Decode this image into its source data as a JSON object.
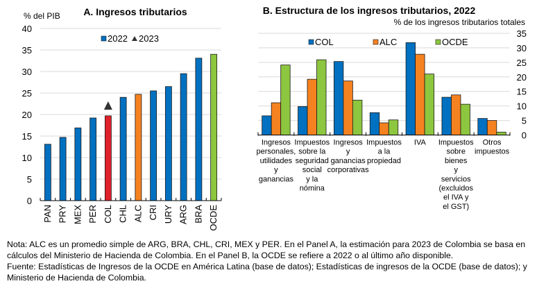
{
  "chart_data": [
    {
      "type": "bar",
      "title": "A. Ingresos tributarios",
      "ylabel": "% del PIB",
      "xlabel": "",
      "ylim": [
        0,
        40
      ],
      "yticks": [
        0,
        5,
        10,
        15,
        20,
        25,
        30,
        35,
        40
      ],
      "grid": true,
      "legend_position": "top-center",
      "categories": [
        "PAN",
        "PRY",
        "MEX",
        "PER",
        "COL",
        "CHL",
        "ALC",
        "CRI",
        "URY",
        "ARG",
        "BRA",
        "OCDE"
      ],
      "series": [
        {
          "name": "2022",
          "marker": "bar",
          "values": [
            13.1,
            14.7,
            16.9,
            19.2,
            19.7,
            24.0,
            24.7,
            25.5,
            26.5,
            29.5,
            33.1,
            34.0
          ]
        },
        {
          "name": "2023",
          "marker": "triangle",
          "values": [
            null,
            null,
            null,
            null,
            22.1,
            null,
            null,
            null,
            null,
            null,
            null,
            null
          ]
        }
      ],
      "bar_colors": [
        "#0070C0",
        "#0070C0",
        "#0070C0",
        "#0070C0",
        "#E0202A",
        "#0070C0",
        "#F58220",
        "#0070C0",
        "#0070C0",
        "#0070C0",
        "#0070C0",
        "#8DC63F"
      ],
      "legend": [
        {
          "label": "2022",
          "color": "#0070C0",
          "shape": "square"
        },
        {
          "label": "2023",
          "color": "#333333",
          "shape": "triangle"
        }
      ]
    },
    {
      "type": "bar",
      "title": "B. Estructura de los ingresos tributarios, 2022",
      "ylabel": "% de los ingresos tributarios totales",
      "xlabel": "",
      "ylim": [
        0,
        35
      ],
      "yticks": [
        0,
        5,
        10,
        15,
        20,
        25,
        30,
        35
      ],
      "y_axis_side": "right",
      "grid": true,
      "legend_position": "top",
      "categories": [
        [
          "Ingresos",
          "personales,",
          "utilidades",
          "y",
          "ganancias"
        ],
        [
          "Impuestos",
          "sobre la",
          "seguridad",
          "social",
          "y la",
          "nómina"
        ],
        [
          "Ingresos",
          "y",
          "ganancias",
          "corporativas"
        ],
        [
          "Impuestos",
          "a la",
          "propiedad"
        ],
        [
          "IVA"
        ],
        [
          "Impuestos",
          "sobre",
          "bienes",
          "y",
          "servicios",
          "(excluidos",
          "el IVA y",
          "el GST)"
        ],
        [
          "Otros",
          "impuestos"
        ]
      ],
      "series": [
        {
          "name": "COL",
          "color": "#0070C0",
          "values": [
            6.6,
            9.8,
            25.3,
            7.7,
            31.8,
            13.0,
            5.7
          ]
        },
        {
          "name": "ALC",
          "color": "#F58220",
          "values": [
            11.1,
            19.2,
            18.6,
            4.2,
            27.8,
            13.8,
            5.0
          ]
        },
        {
          "name": "OCDE",
          "color": "#8DC63F",
          "values": [
            24.1,
            25.9,
            12.0,
            5.2,
            21.0,
            10.6,
            1.0
          ]
        }
      ]
    }
  ],
  "notes": {
    "line1": "Nota: ALC es un promedio simple de ARG, BRA, CHL, CRI, MEX y PER. En el Panel A, la estimación para 2023 de Colombia se basa en",
    "line2": "cálculos del Ministerio de Hacienda de Colombia. En el Panel B, la OCDE se refiere a 2022 o al último año disponible.",
    "line3": "Fuente: Estadísticas de Ingresos de la OCDE en América Latina (base de datos); Estadísticas de ingresos de la OCDE (base de datos); y",
    "line4": "Ministerio de Hacienda de Colombia."
  }
}
